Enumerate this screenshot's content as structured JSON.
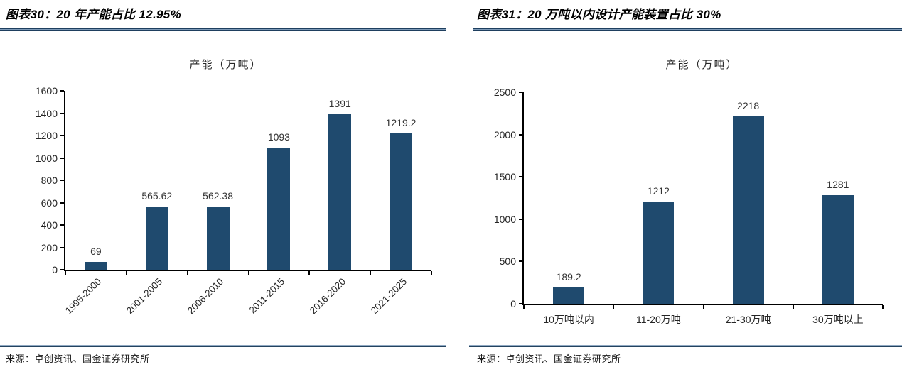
{
  "figures": [
    {
      "header": "图表30：20 年产能占比 12.95%",
      "source": "来源：卓创资讯、国金证券研究所"
    },
    {
      "header": "图表31：20 万吨以内设计产能装置占比 30%",
      "source": "来源：卓创资讯、国金证券研究所"
    }
  ],
  "chart_data": [
    {
      "type": "bar",
      "title": "产能（万吨）",
      "categories": [
        "1995-2000",
        "2001-2005",
        "2006-2010",
        "2011-2015",
        "2016-2020",
        "2021-2025"
      ],
      "values": [
        69,
        565.62,
        562.38,
        1093,
        1391,
        1219.2
      ],
      "value_labels": [
        "69",
        "565.62",
        "562.38",
        "1093",
        "1391",
        "1219.2"
      ],
      "ylim": [
        0,
        1600
      ],
      "yticks": [
        0,
        200,
        400,
        600,
        800,
        1000,
        1200,
        1400,
        1600
      ],
      "bar_color": "#1f4a6e",
      "grid": false,
      "legend": false,
      "x_labels_rotated": true
    },
    {
      "type": "bar",
      "title": "产能（万吨）",
      "categories": [
        "10万吨以内",
        "11-20万吨",
        "21-30万吨",
        "30万吨以上"
      ],
      "values": [
        189.2,
        1212,
        2218,
        1281
      ],
      "value_labels": [
        "189.2",
        "1212",
        "2218",
        "1281"
      ],
      "ylim": [
        0,
        2500
      ],
      "yticks": [
        0,
        500,
        1000,
        1500,
        2000,
        2500
      ],
      "bar_color": "#1f4a6e",
      "grid": false,
      "legend": false,
      "x_labels_rotated": false
    }
  ]
}
